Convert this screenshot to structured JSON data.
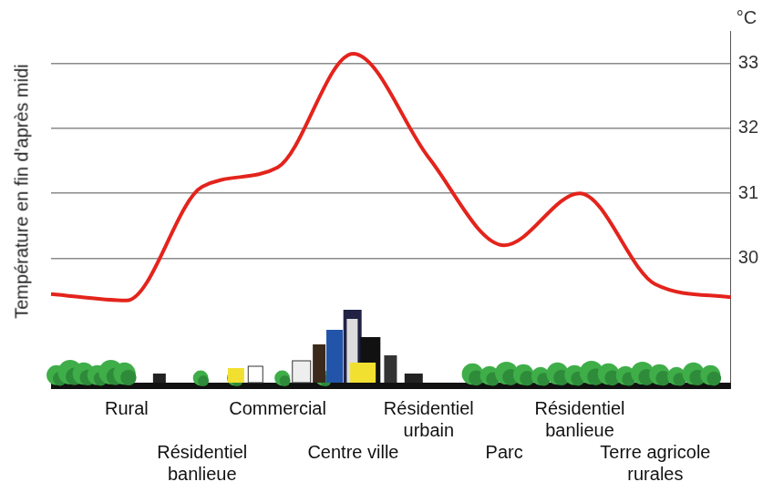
{
  "chart_data": {
    "type": "line",
    "ylabel": "Température en fin d'après midi",
    "y_unit": "°C",
    "categories": [
      null,
      "Rural",
      "Résidentiel banlieue",
      "Commercial",
      "Centre ville",
      "Résidentiel urbain",
      "Parc",
      "Résidentiel banlieue",
      "Terre agricole rurales",
      null
    ],
    "values": [
      29.45,
      29.35,
      31.1,
      31.4,
      33.15,
      31.55,
      30.2,
      31.0,
      29.6,
      29.4
    ],
    "color": "#e3241c",
    "line_style": "solid",
    "ylim": [
      28,
      33.5
    ],
    "yticks": [
      30,
      31,
      32,
      33
    ],
    "grid": true
  }
}
